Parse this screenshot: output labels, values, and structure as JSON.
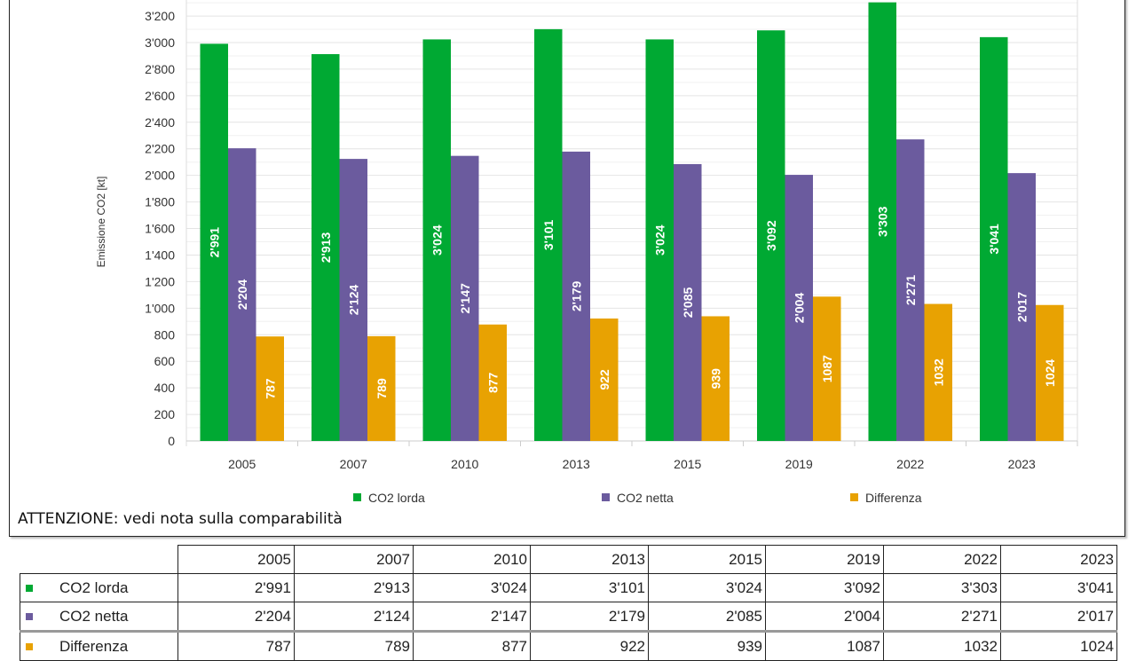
{
  "chart_data": {
    "type": "bar",
    "title": "",
    "ylabel": "Emissione CO2 [kt]",
    "xlabel": "",
    "categories": [
      "2005",
      "2007",
      "2010",
      "2013",
      "2015",
      "2019",
      "2022",
      "2023"
    ],
    "series": [
      {
        "name": "CO2 lorda",
        "color": "#00a933",
        "values": [
          2991,
          2913,
          3024,
          3101,
          3024,
          3092,
          3303,
          3041
        ],
        "labels": [
          "2'991",
          "2'913",
          "3'024",
          "3'101",
          "3'024",
          "3'092",
          "3'303",
          "3'041"
        ]
      },
      {
        "name": "CO2 netta",
        "color": "#6b5b9e",
        "values": [
          2204,
          2124,
          2147,
          2179,
          2085,
          2004,
          2271,
          2017
        ],
        "labels": [
          "2'204",
          "2'124",
          "2'147",
          "2'179",
          "2'085",
          "2'004",
          "2'271",
          "2'017"
        ]
      },
      {
        "name": "Differenza",
        "color": "#e8a202",
        "values": [
          787,
          789,
          877,
          922,
          939,
          1087,
          1032,
          1024
        ],
        "labels": [
          "787",
          "789",
          "877",
          "922",
          "939",
          "1087",
          "1032",
          "1024"
        ]
      }
    ],
    "yticks": [
      "0",
      "200",
      "400",
      "600",
      "800",
      "1'000",
      "1'200",
      "1'400",
      "1'600",
      "1'800",
      "2'000",
      "2'200",
      "2'400",
      "2'600",
      "2'800",
      "3'000",
      "3'200"
    ],
    "ytick_step": 200,
    "ylim": [
      0,
      3400
    ],
    "grid": true,
    "legend": "bottom"
  },
  "note": "ATTENZIONE: vedi nota sulla comparabilità",
  "table": {
    "header": [
      "2005",
      "2007",
      "2010",
      "2013",
      "2015",
      "2019",
      "2022",
      "2023"
    ],
    "rows": [
      {
        "label": "CO2 lorda",
        "color": "#00a933",
        "values": [
          "2'991",
          "2'913",
          "3'024",
          "3'101",
          "3'024",
          "3'092",
          "3'303",
          "3'041"
        ]
      },
      {
        "label": "CO2 netta",
        "color": "#6b5b9e",
        "values": [
          "2'204",
          "2'124",
          "2'147",
          "2'179",
          "2'085",
          "2'004",
          "2'271",
          "2'017"
        ]
      },
      {
        "label": "Differenza",
        "color": "#e8a202",
        "values": [
          "787",
          "789",
          "877",
          "922",
          "939",
          "1087",
          "1032",
          "1024"
        ]
      }
    ]
  }
}
